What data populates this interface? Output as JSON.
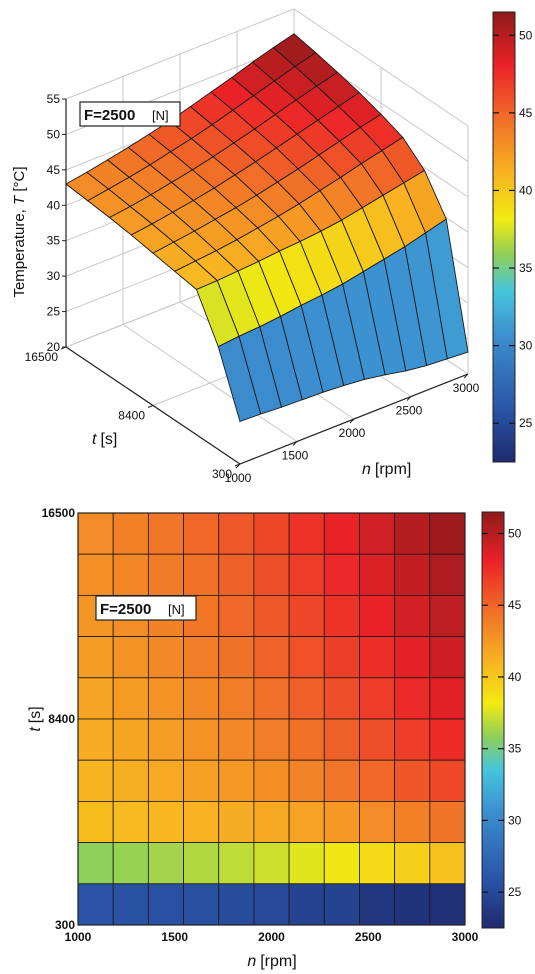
{
  "chart_data": [
    {
      "type": "surface",
      "annotation": "F=2500",
      "annotation_unit": "[N]",
      "xlabel": "n",
      "xlabel_unit": "[rpm]",
      "ylabel": "t",
      "ylabel_unit": "[s]",
      "zlabel": "Temperature, ",
      "zlabel_var": "T",
      "zlabel_unit": " [°C]",
      "x_ticks": [
        "1000",
        "1500",
        "2000",
        "2500",
        "3000"
      ],
      "y_ticks": [
        "300",
        "8400",
        "16500"
      ],
      "z_ticks": [
        "20",
        "25",
        "30",
        "35",
        "40",
        "45",
        "50",
        "55"
      ],
      "xlim": [
        1000,
        3000
      ],
      "ylim": [
        300,
        16500
      ],
      "zlim": [
        20,
        55
      ],
      "grid": true,
      "colorbar": {
        "range": [
          22.5,
          51.5
        ],
        "ticks": [
          "25",
          "30",
          "35",
          "40",
          "45",
          "50"
        ]
      }
    },
    {
      "type": "heatmap",
      "annotation": "F=2500",
      "annotation_unit": "[N]",
      "xlabel": "n",
      "xlabel_unit": "[rpm]",
      "ylabel": "t",
      "ylabel_unit": "[s]",
      "x_ticks": [
        "1000",
        "1500",
        "2000",
        "2500",
        "3000"
      ],
      "y_ticks": [
        "300",
        "8400",
        "16500"
      ],
      "xlim": [
        1000,
        3000
      ],
      "ylim": [
        300,
        16500
      ],
      "colorbar": {
        "range": [
          22.5,
          51.5
        ],
        "ticks": [
          "25",
          "30",
          "35",
          "40",
          "45",
          "50"
        ]
      }
    }
  ],
  "grid": {
    "n_values": [
      1000,
      1181.8,
      1363.6,
      1545.5,
      1727.3,
      1909.1,
      2090.9,
      2272.7,
      2454.5,
      2636.4,
      2818.2,
      3000
    ],
    "t_values": [
      300,
      2325,
      4350,
      6375,
      8400,
      10425,
      12450,
      14475,
      16500
    ],
    "temperature_rows_t_ascending": [
      [
        26.0,
        25.9,
        25.7,
        25.6,
        25.5,
        25.3,
        25.0,
        24.5,
        23.9,
        23.5,
        23.3,
        23.1
      ],
      [
        34.5,
        34.8,
        35.0,
        35.3,
        35.7,
        36.0,
        36.4,
        37.0,
        37.6,
        38.2,
        39.0,
        39.8
      ],
      [
        40.5,
        40.6,
        40.8,
        41.0,
        41.3,
        41.5,
        41.8,
        42.2,
        42.8,
        43.4,
        44.0,
        44.6
      ],
      [
        41.0,
        41.3,
        41.6,
        42.0,
        42.5,
        43.0,
        43.6,
        44.3,
        45.0,
        45.8,
        46.5,
        47.2
      ],
      [
        41.5,
        41.9,
        42.3,
        42.8,
        43.3,
        43.9,
        44.6,
        45.3,
        46.1,
        46.9,
        47.7,
        48.4
      ],
      [
        42.0,
        42.4,
        42.9,
        43.4,
        44.0,
        44.7,
        45.4,
        46.2,
        47.0,
        47.8,
        48.6,
        49.4
      ],
      [
        42.4,
        42.8,
        43.3,
        43.9,
        44.5,
        45.2,
        46.0,
        46.8,
        47.7,
        48.6,
        49.4,
        50.2
      ],
      [
        42.7,
        43.2,
        43.7,
        44.3,
        45.0,
        45.7,
        46.5,
        47.4,
        48.3,
        49.2,
        50.1,
        50.9
      ],
      [
        43.0,
        43.5,
        44.1,
        44.7,
        45.4,
        46.1,
        47.0,
        47.9,
        48.8,
        49.8,
        50.7,
        51.5
      ]
    ]
  }
}
